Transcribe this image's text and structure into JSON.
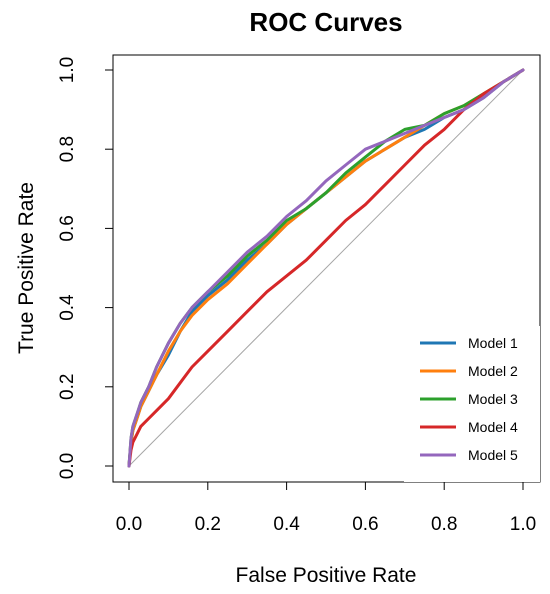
{
  "chart_data": {
    "type": "line",
    "title": "ROC Curves",
    "xlabel": "False Positive Rate",
    "ylabel": "True Positive Rate",
    "xlim": [
      0,
      1
    ],
    "ylim": [
      0,
      1
    ],
    "xticks": [
      "0.0",
      "0.2",
      "0.4",
      "0.6",
      "0.8",
      "1.0"
    ],
    "yticks": [
      "0.0",
      "0.2",
      "0.4",
      "0.6",
      "0.8",
      "1.0"
    ],
    "grid": false,
    "legend_position": "bottom-right",
    "reference_line": {
      "from": [
        0,
        0
      ],
      "to": [
        1,
        1
      ],
      "color": "#a6a6a6"
    },
    "series": [
      {
        "name": "Model 1",
        "color": "#1f77b4",
        "x": [
          0,
          0.005,
          0.01,
          0.02,
          0.03,
          0.05,
          0.07,
          0.1,
          0.13,
          0.16,
          0.2,
          0.25,
          0.3,
          0.35,
          0.4,
          0.45,
          0.5,
          0.55,
          0.6,
          0.65,
          0.7,
          0.75,
          0.8,
          0.85,
          0.9,
          0.95,
          1.0
        ],
        "y": [
          0,
          0.06,
          0.09,
          0.12,
          0.15,
          0.19,
          0.23,
          0.28,
          0.34,
          0.39,
          0.43,
          0.47,
          0.52,
          0.56,
          0.61,
          0.65,
          0.69,
          0.73,
          0.77,
          0.8,
          0.83,
          0.85,
          0.88,
          0.9,
          0.93,
          0.97,
          1.0
        ]
      },
      {
        "name": "Model 2",
        "color": "#ff7f0e",
        "x": [
          0,
          0.005,
          0.01,
          0.02,
          0.03,
          0.05,
          0.07,
          0.1,
          0.13,
          0.16,
          0.2,
          0.25,
          0.3,
          0.35,
          0.4,
          0.45,
          0.5,
          0.55,
          0.6,
          0.65,
          0.7,
          0.75,
          0.8,
          0.85,
          0.9,
          0.95,
          1.0
        ],
        "y": [
          0,
          0.06,
          0.09,
          0.12,
          0.15,
          0.19,
          0.23,
          0.29,
          0.34,
          0.38,
          0.42,
          0.46,
          0.51,
          0.56,
          0.61,
          0.65,
          0.69,
          0.73,
          0.77,
          0.8,
          0.83,
          0.86,
          0.89,
          0.91,
          0.94,
          0.97,
          1.0
        ]
      },
      {
        "name": "Model 3",
        "color": "#2ca02c",
        "x": [
          0,
          0.005,
          0.01,
          0.02,
          0.03,
          0.05,
          0.07,
          0.1,
          0.13,
          0.16,
          0.2,
          0.25,
          0.3,
          0.35,
          0.4,
          0.45,
          0.5,
          0.55,
          0.6,
          0.65,
          0.7,
          0.75,
          0.8,
          0.85,
          0.9,
          0.95,
          1.0
        ],
        "y": [
          0,
          0.07,
          0.1,
          0.13,
          0.16,
          0.2,
          0.25,
          0.31,
          0.36,
          0.4,
          0.44,
          0.48,
          0.53,
          0.57,
          0.62,
          0.65,
          0.69,
          0.74,
          0.78,
          0.82,
          0.85,
          0.86,
          0.89,
          0.91,
          0.94,
          0.97,
          1.0
        ]
      },
      {
        "name": "Model 4",
        "color": "#d62728",
        "x": [
          0,
          0.005,
          0.01,
          0.02,
          0.03,
          0.05,
          0.07,
          0.1,
          0.13,
          0.16,
          0.2,
          0.25,
          0.3,
          0.35,
          0.4,
          0.45,
          0.5,
          0.55,
          0.6,
          0.65,
          0.7,
          0.75,
          0.8,
          0.85,
          0.9,
          0.95,
          1.0
        ],
        "y": [
          0,
          0.04,
          0.06,
          0.08,
          0.1,
          0.12,
          0.14,
          0.17,
          0.21,
          0.25,
          0.29,
          0.34,
          0.39,
          0.44,
          0.48,
          0.52,
          0.57,
          0.62,
          0.66,
          0.71,
          0.76,
          0.81,
          0.85,
          0.9,
          0.94,
          0.97,
          1.0
        ]
      },
      {
        "name": "Model 5",
        "color": "#9467bd",
        "x": [
          0,
          0.005,
          0.01,
          0.02,
          0.03,
          0.05,
          0.07,
          0.1,
          0.13,
          0.16,
          0.2,
          0.25,
          0.3,
          0.35,
          0.4,
          0.45,
          0.5,
          0.55,
          0.6,
          0.65,
          0.7,
          0.75,
          0.8,
          0.85,
          0.9,
          0.95,
          1.0
        ],
        "y": [
          0,
          0.07,
          0.1,
          0.13,
          0.16,
          0.2,
          0.25,
          0.31,
          0.36,
          0.4,
          0.44,
          0.49,
          0.54,
          0.58,
          0.63,
          0.67,
          0.72,
          0.76,
          0.8,
          0.82,
          0.84,
          0.86,
          0.88,
          0.9,
          0.93,
          0.97,
          1.0
        ]
      }
    ]
  }
}
